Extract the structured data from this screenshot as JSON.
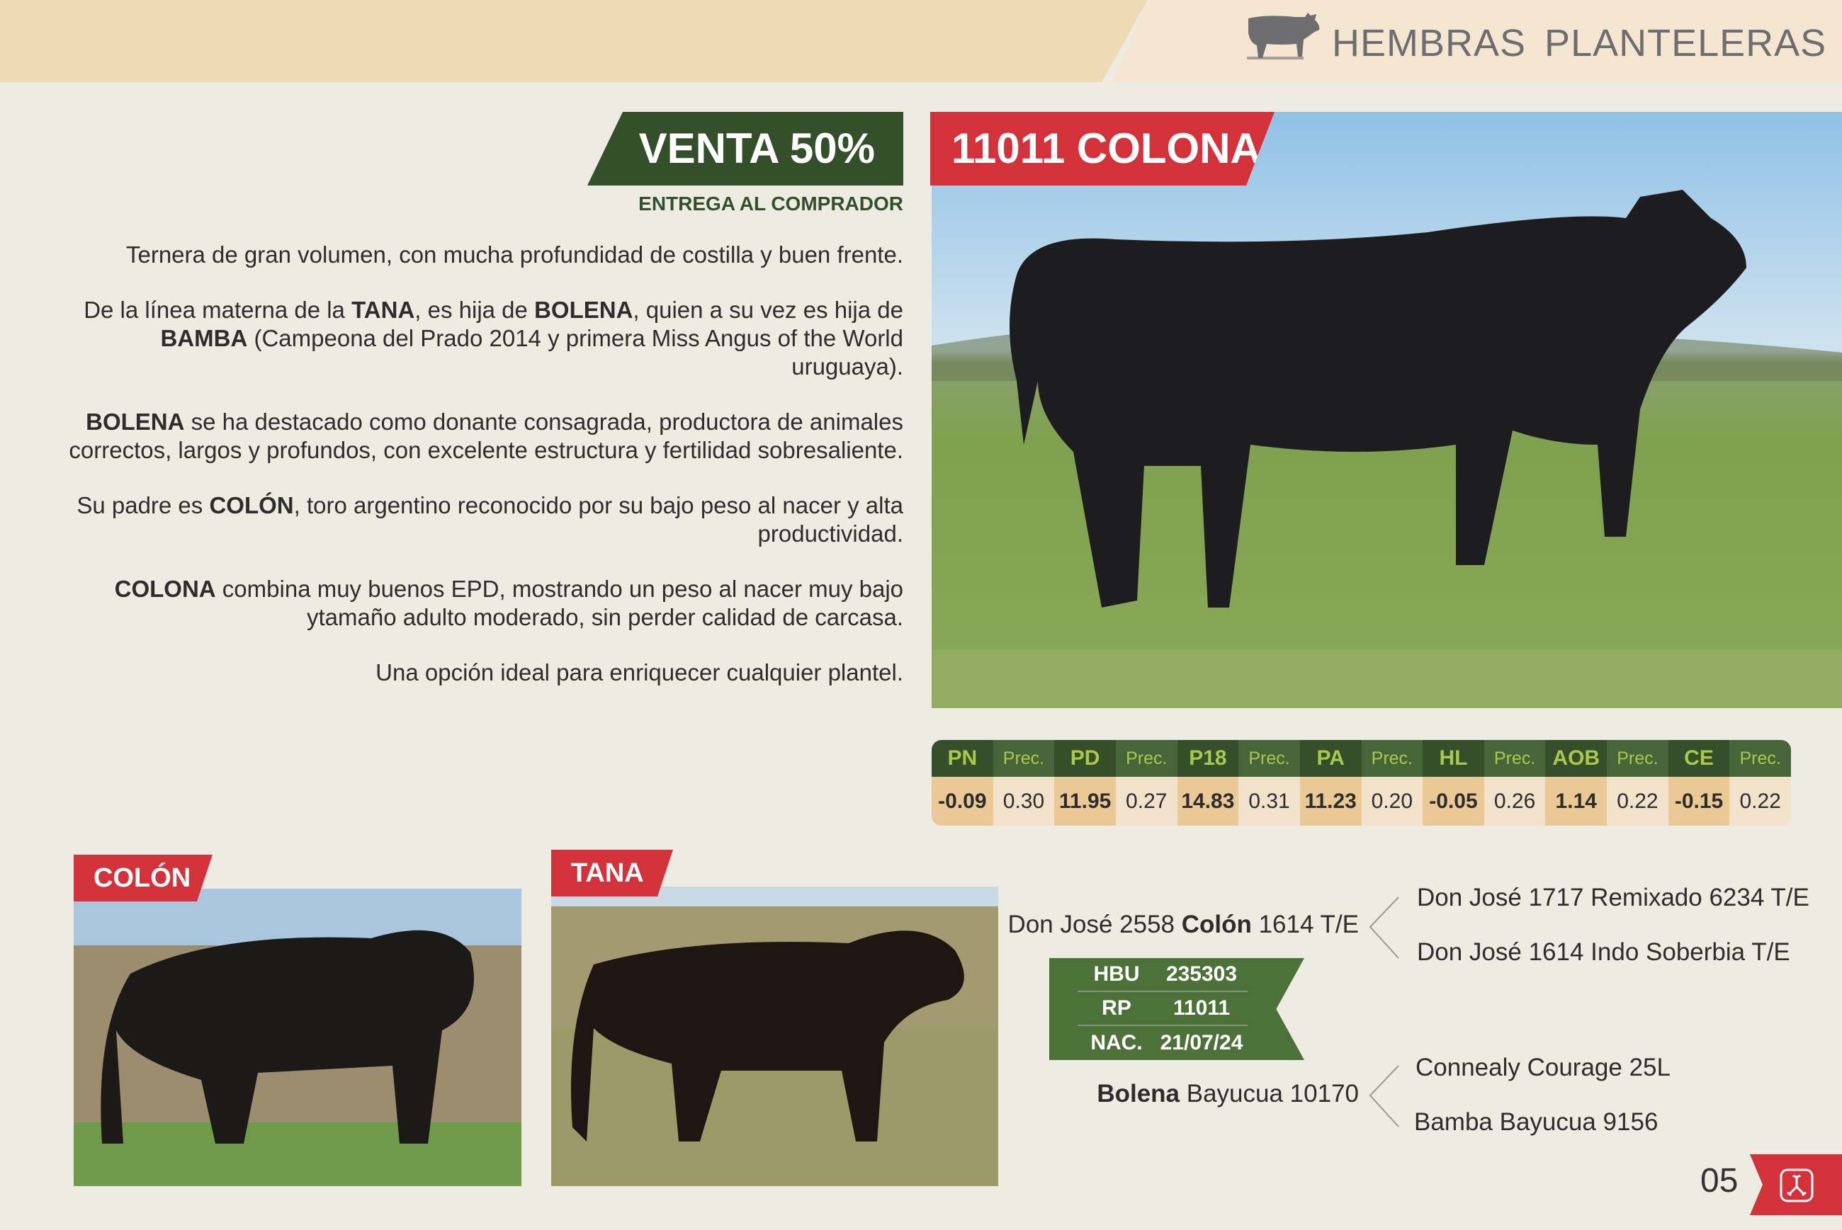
{
  "header": {
    "title": "HEMBRAS  PLANTELERAS",
    "icon": "cow-icon"
  },
  "sale": {
    "badge": "VENTA 50%",
    "subtitle": "ENTREGA AL COMPRADOR"
  },
  "animal": {
    "title": "11011 COLONA"
  },
  "description": [
    {
      "parts": [
        {
          "t": "Ternera de gran volumen, con mucha profundidad de costilla y buen frente.",
          "b": false
        }
      ]
    },
    {
      "parts": [
        {
          "t": "De la línea materna de la ",
          "b": false
        },
        {
          "t": "TANA",
          "b": true
        },
        {
          "t": ", es hija de ",
          "b": false
        },
        {
          "t": "BOLENA",
          "b": true
        },
        {
          "t": ", quien a su vez es hija de ",
          "b": false
        },
        {
          "t": "BAMBA",
          "b": true
        },
        {
          "t": " (Campeona del Prado 2014 y primera Miss Angus of the World uruguaya).",
          "b": false
        }
      ]
    },
    {
      "parts": [
        {
          "t": "BOLENA",
          "b": true
        },
        {
          "t": " se ha destacado como donante consagrada, productora de animales correctos, largos y profundos, con excelente estructura y fertilidad sobresaliente.",
          "b": false
        }
      ]
    },
    {
      "parts": [
        {
          "t": "Su padre es ",
          "b": false
        },
        {
          "t": "COLÓN",
          "b": true
        },
        {
          "t": ", toro argentino reconocido por su bajo peso al nacer y alta productividad.",
          "b": false
        }
      ]
    },
    {
      "parts": [
        {
          "t": "COLONA",
          "b": true
        },
        {
          "t": " combina muy buenos EPD, mostrando un peso al nacer muy bajo ytamaño adulto moderado, sin perder calidad de carcasa.",
          "b": false
        }
      ]
    },
    {
      "parts": [
        {
          "t": "Una opción ideal para enriquecer cualquier plantel.",
          "b": false
        }
      ]
    }
  ],
  "epd": {
    "headers": [
      "PN",
      "Prec.",
      "PD",
      "Prec.",
      "P18",
      "Prec.",
      "PA",
      "Prec.",
      "HL",
      "Prec.",
      "AOB",
      "Prec.",
      "CE",
      "Prec."
    ],
    "values": [
      "-0.09",
      "0.30",
      "11.95",
      "0.27",
      "14.83",
      "0.31",
      "11.23",
      "0.20",
      "-0.05",
      "0.26",
      "1.14",
      "0.22",
      "-0.15",
      "0.22"
    ]
  },
  "photos": {
    "sire_label": "COLÓN",
    "dam_line_label": "TANA"
  },
  "pedigree": {
    "sire": {
      "pre": "Don José 2558 ",
      "bold": "Colón",
      "post": " 1614 T/E"
    },
    "sire_sire": "Don José 1717 Remixado 6234 T/E",
    "sire_dam": "Don José 1614 Indo Soberbia T/E",
    "dam": {
      "bold": "Bolena",
      "post": " Bayucua 10170"
    },
    "dam_sire": "Connealy Courage 25L",
    "dam_dam": "Bamba Bayucua 9156",
    "ids": [
      {
        "k": "HBU",
        "v": "235303"
      },
      {
        "k": "RP",
        "v": "11011"
      },
      {
        "k": "NAC.",
        "v": "21/07/24"
      }
    ]
  },
  "footer": {
    "page": "05",
    "icon": "brand-logo-icon"
  },
  "colors": {
    "red": "#d4323a",
    "green": "#34502a",
    "lime": "#a9c84c"
  }
}
